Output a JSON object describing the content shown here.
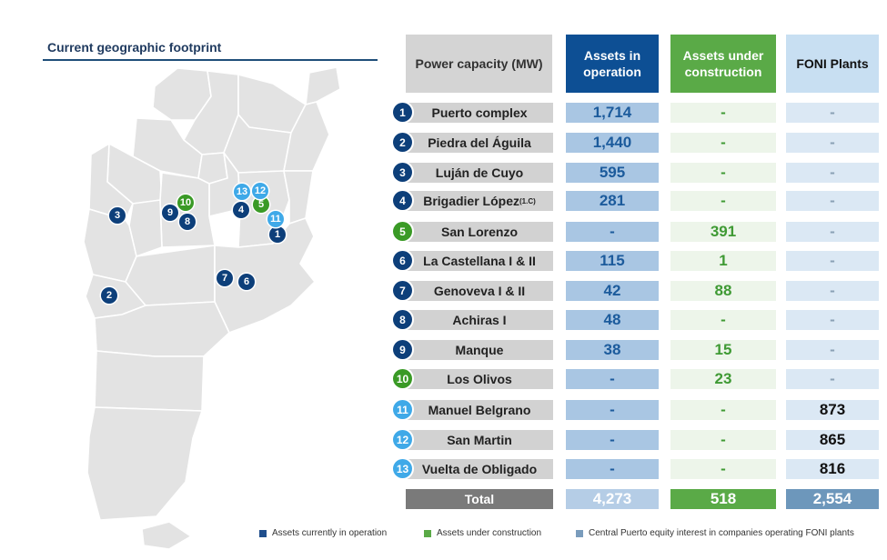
{
  "title": "Current geographic footprint",
  "headers": {
    "power_capacity": "Power capacity (MW)",
    "operation": "Assets in operation",
    "construction": "Assets under construction",
    "foni": "FONI Plants"
  },
  "rows": [
    {
      "num": "1",
      "name": "Puerto complex",
      "op": "1,714",
      "uc": "-",
      "foni": "-"
    },
    {
      "num": "2",
      "name": "Piedra del Águila",
      "op": "1,440",
      "uc": "-",
      "foni": "-"
    },
    {
      "num": "3",
      "name": "Luján de Cuyo",
      "op": "595",
      "uc": "-",
      "foni": "-"
    },
    {
      "num": "4",
      "name": "Brigadier López",
      "sup": "(1.C)",
      "op": "281",
      "uc": "-",
      "foni": "-"
    },
    {
      "num": "5",
      "name": "San Lorenzo",
      "op": "-",
      "uc": "391",
      "foni": "-"
    },
    {
      "num": "6",
      "name": "La Castellana I & II",
      "op": "115",
      "uc": "1",
      "foni": "-"
    },
    {
      "num": "7",
      "name": "Genoveva I & II",
      "op": "42",
      "uc": "88",
      "foni": "-"
    },
    {
      "num": "8",
      "name": "Achiras I",
      "op": "48",
      "uc": "-",
      "foni": "-"
    },
    {
      "num": "9",
      "name": "Manque",
      "op": "38",
      "uc": "15",
      "foni": "-"
    },
    {
      "num": "10",
      "name": "Los Olivos",
      "op": "-",
      "uc": "23",
      "foni": "-"
    },
    {
      "num": "11",
      "name": "Manuel Belgrano",
      "op": "-",
      "uc": "-",
      "foni": "873"
    },
    {
      "num": "12",
      "name": "San Martin",
      "op": "-",
      "uc": "-",
      "foni": "865"
    },
    {
      "num": "13",
      "name": "Vuelta de Obligado",
      "op": "-",
      "uc": "-",
      "foni": "816"
    }
  ],
  "total": {
    "label": "Total",
    "op": "4,273",
    "uc": "518",
    "foni": "2,554"
  },
  "legend": {
    "operation": "Assets currently in operation",
    "construction": "Assets under construction",
    "foni": "Central Puerto equity interest in companies operating FONI plants"
  },
  "colors": {
    "operation": "#0d3f7a",
    "construction": "#3a9a26",
    "foni": "#3fa9e8"
  }
}
